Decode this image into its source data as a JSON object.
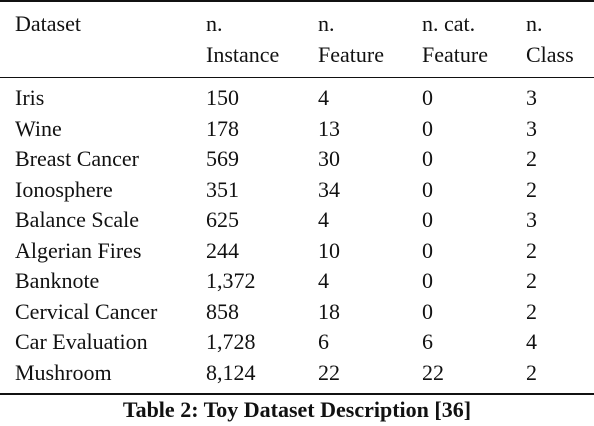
{
  "table": {
    "headers": [
      [
        "Dataset",
        ""
      ],
      [
        "n.",
        "Instance"
      ],
      [
        "n.",
        "Feature"
      ],
      [
        "n. cat.",
        "Feature"
      ],
      [
        "n.",
        "Class"
      ]
    ],
    "rows": [
      [
        "Iris",
        "150",
        "4",
        "0",
        "3"
      ],
      [
        "Wine",
        "178",
        "13",
        "0",
        "3"
      ],
      [
        "Breast Cancer",
        "569",
        "30",
        "0",
        "2"
      ],
      [
        "Ionosphere",
        "351",
        "34",
        "0",
        "2"
      ],
      [
        "Balance Scale",
        "625",
        "4",
        "0",
        "3"
      ],
      [
        "Algerian Fires",
        "244",
        "10",
        "0",
        "2"
      ],
      [
        "Banknote",
        "1,372",
        "4",
        "0",
        "2"
      ],
      [
        "Cervical Cancer",
        "858",
        "18",
        "0",
        "2"
      ],
      [
        "Car Evaluation",
        "1,728",
        "6",
        "6",
        "4"
      ],
      [
        "Mushroom",
        "8,124",
        "22",
        "22",
        "2"
      ]
    ]
  },
  "caption": "Table 2: Toy Dataset Description [36]"
}
